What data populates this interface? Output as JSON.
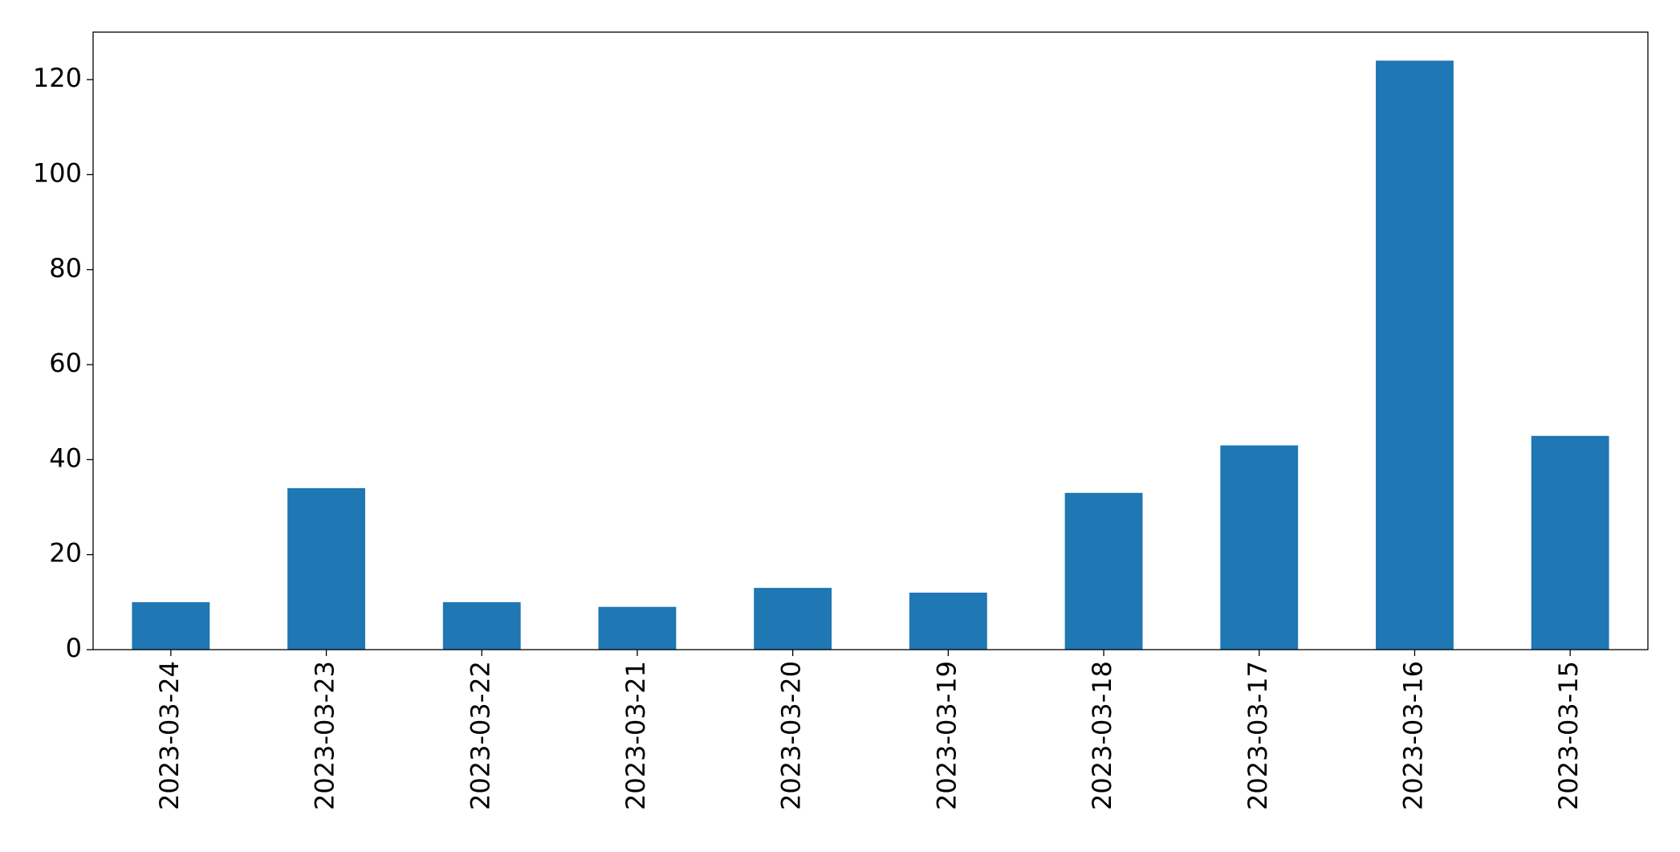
{
  "chart_data": {
    "type": "bar",
    "categories": [
      "2023-03-24",
      "2023-03-23",
      "2023-03-22",
      "2023-03-21",
      "2023-03-20",
      "2023-03-19",
      "2023-03-18",
      "2023-03-17",
      "2023-03-16",
      "2023-03-15"
    ],
    "values": [
      10,
      34,
      10,
      9,
      13,
      12,
      33,
      43,
      124,
      45
    ],
    "color": "#1f77b4",
    "ylim": [
      0,
      130
    ],
    "yticks": [
      0,
      20,
      40,
      60,
      80,
      100,
      120
    ],
    "grid": false
  }
}
